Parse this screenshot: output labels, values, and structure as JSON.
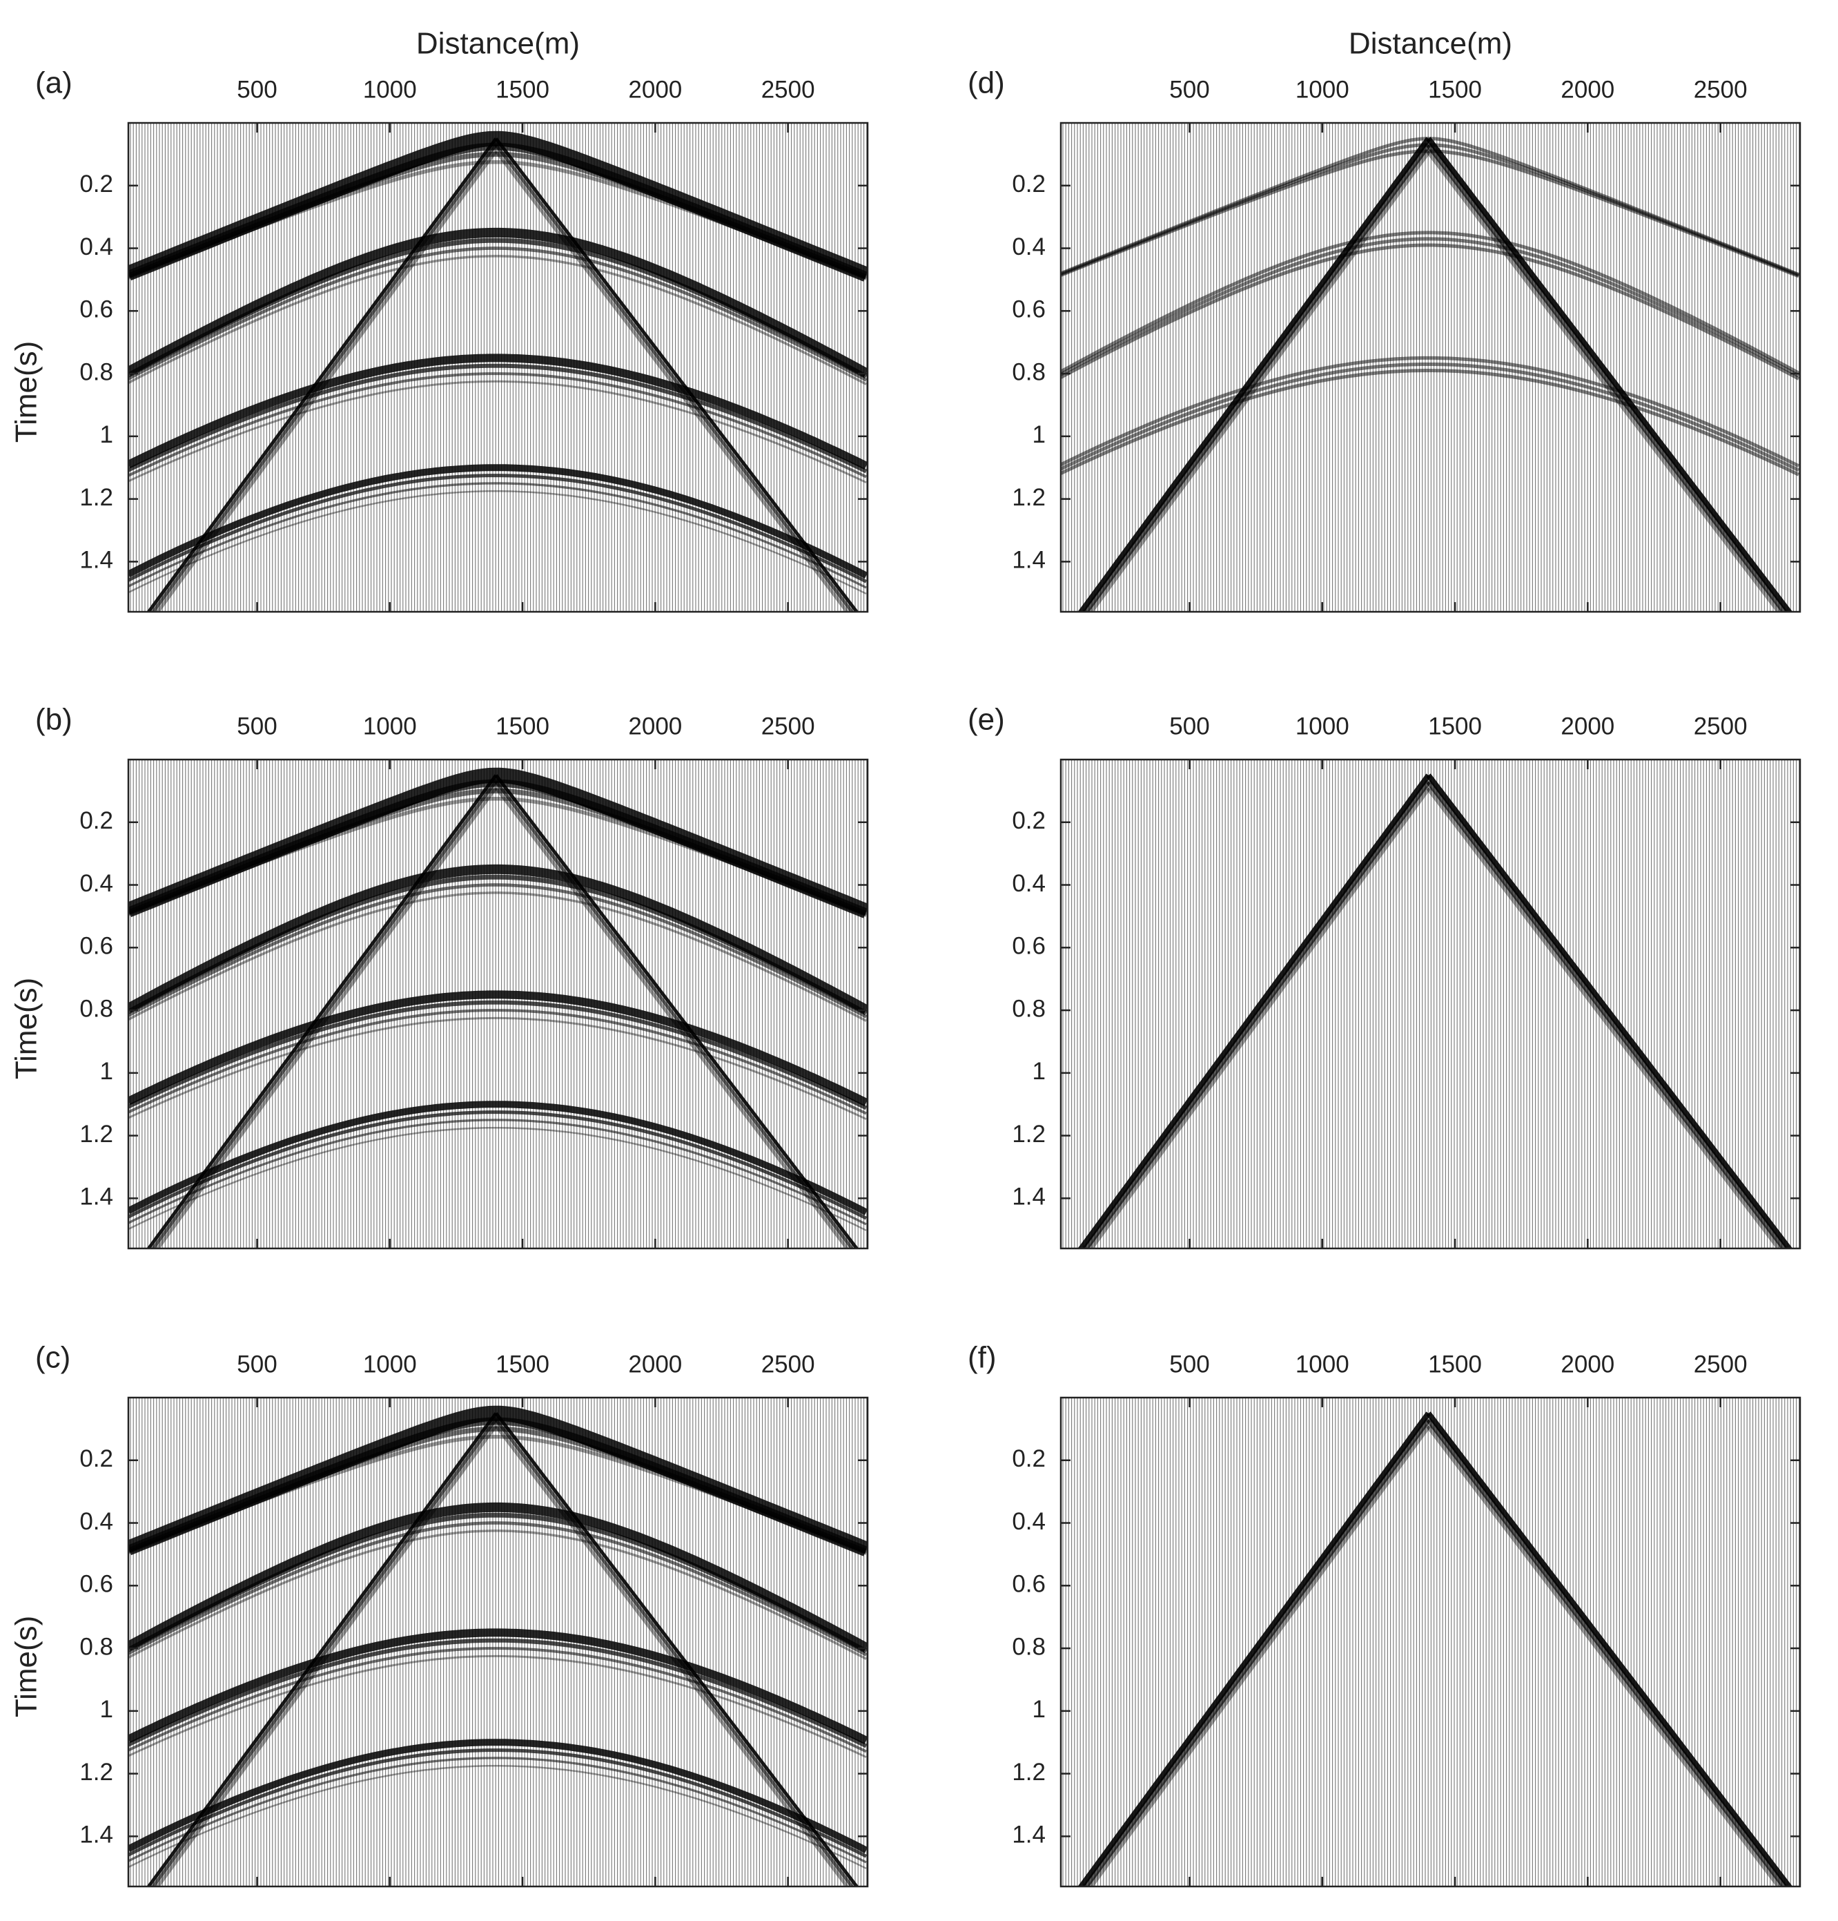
{
  "chart_data": [
    {
      "type": "wiggle",
      "panel": "(a)",
      "xlabel": "Distance(m)",
      "ylabel": "Time(s)",
      "xlim": [
        15,
        2800
      ],
      "xticks": [
        500,
        1000,
        1500,
        2000,
        2500
      ],
      "ylim": [
        0,
        1.56
      ],
      "yticks": [
        0.2,
        0.4,
        0.6,
        0.8,
        1,
        1.2,
        1.4
      ],
      "y_reversed": true
    },
    {
      "type": "wiggle",
      "panel": "(b)",
      "ylabel": "Time(s)",
      "xlim": [
        15,
        2800
      ],
      "xticks": [
        500,
        1000,
        1500,
        2000,
        2500
      ],
      "ylim": [
        0,
        1.56
      ],
      "yticks": [
        0.2,
        0.4,
        0.6,
        0.8,
        1,
        1.2,
        1.4
      ],
      "y_reversed": true
    },
    {
      "type": "wiggle",
      "panel": "(c)",
      "ylabel": "Time(s)",
      "xlim": [
        15,
        2800
      ],
      "xticks": [
        500,
        1000,
        1500,
        2000,
        2500
      ],
      "ylim": [
        0,
        1.56
      ],
      "yticks": [
        0.2,
        0.4,
        0.6,
        0.8,
        1,
        1.2,
        1.4
      ],
      "y_reversed": true
    },
    {
      "type": "wiggle",
      "panel": "(d)",
      "xlabel": "Distance(m)",
      "xlim": [
        15,
        2800
      ],
      "xticks": [
        500,
        1000,
        1500,
        2000,
        2500
      ],
      "ylim": [
        0,
        1.56
      ],
      "yticks": [
        0.2,
        0.4,
        0.6,
        0.8,
        1,
        1.2,
        1.4
      ],
      "y_reversed": true
    },
    {
      "type": "wiggle",
      "panel": "(e)",
      "xlim": [
        15,
        2800
      ],
      "xticks": [
        500,
        1000,
        1500,
        2000,
        2500
      ],
      "ylim": [
        0,
        1.56
      ],
      "yticks": [
        0.2,
        0.4,
        0.6,
        0.8,
        1,
        1.2,
        1.4
      ],
      "y_reversed": true
    },
    {
      "type": "wiggle",
      "panel": "(f)",
      "xlim": [
        15,
        2800
      ],
      "xticks": [
        500,
        1000,
        1500,
        2000,
        2500
      ],
      "ylim": [
        0,
        1.56
      ],
      "yticks": [
        0.2,
        0.4,
        0.6,
        0.8,
        1,
        1.2,
        1.4
      ],
      "y_reversed": true
    }
  ]
}
